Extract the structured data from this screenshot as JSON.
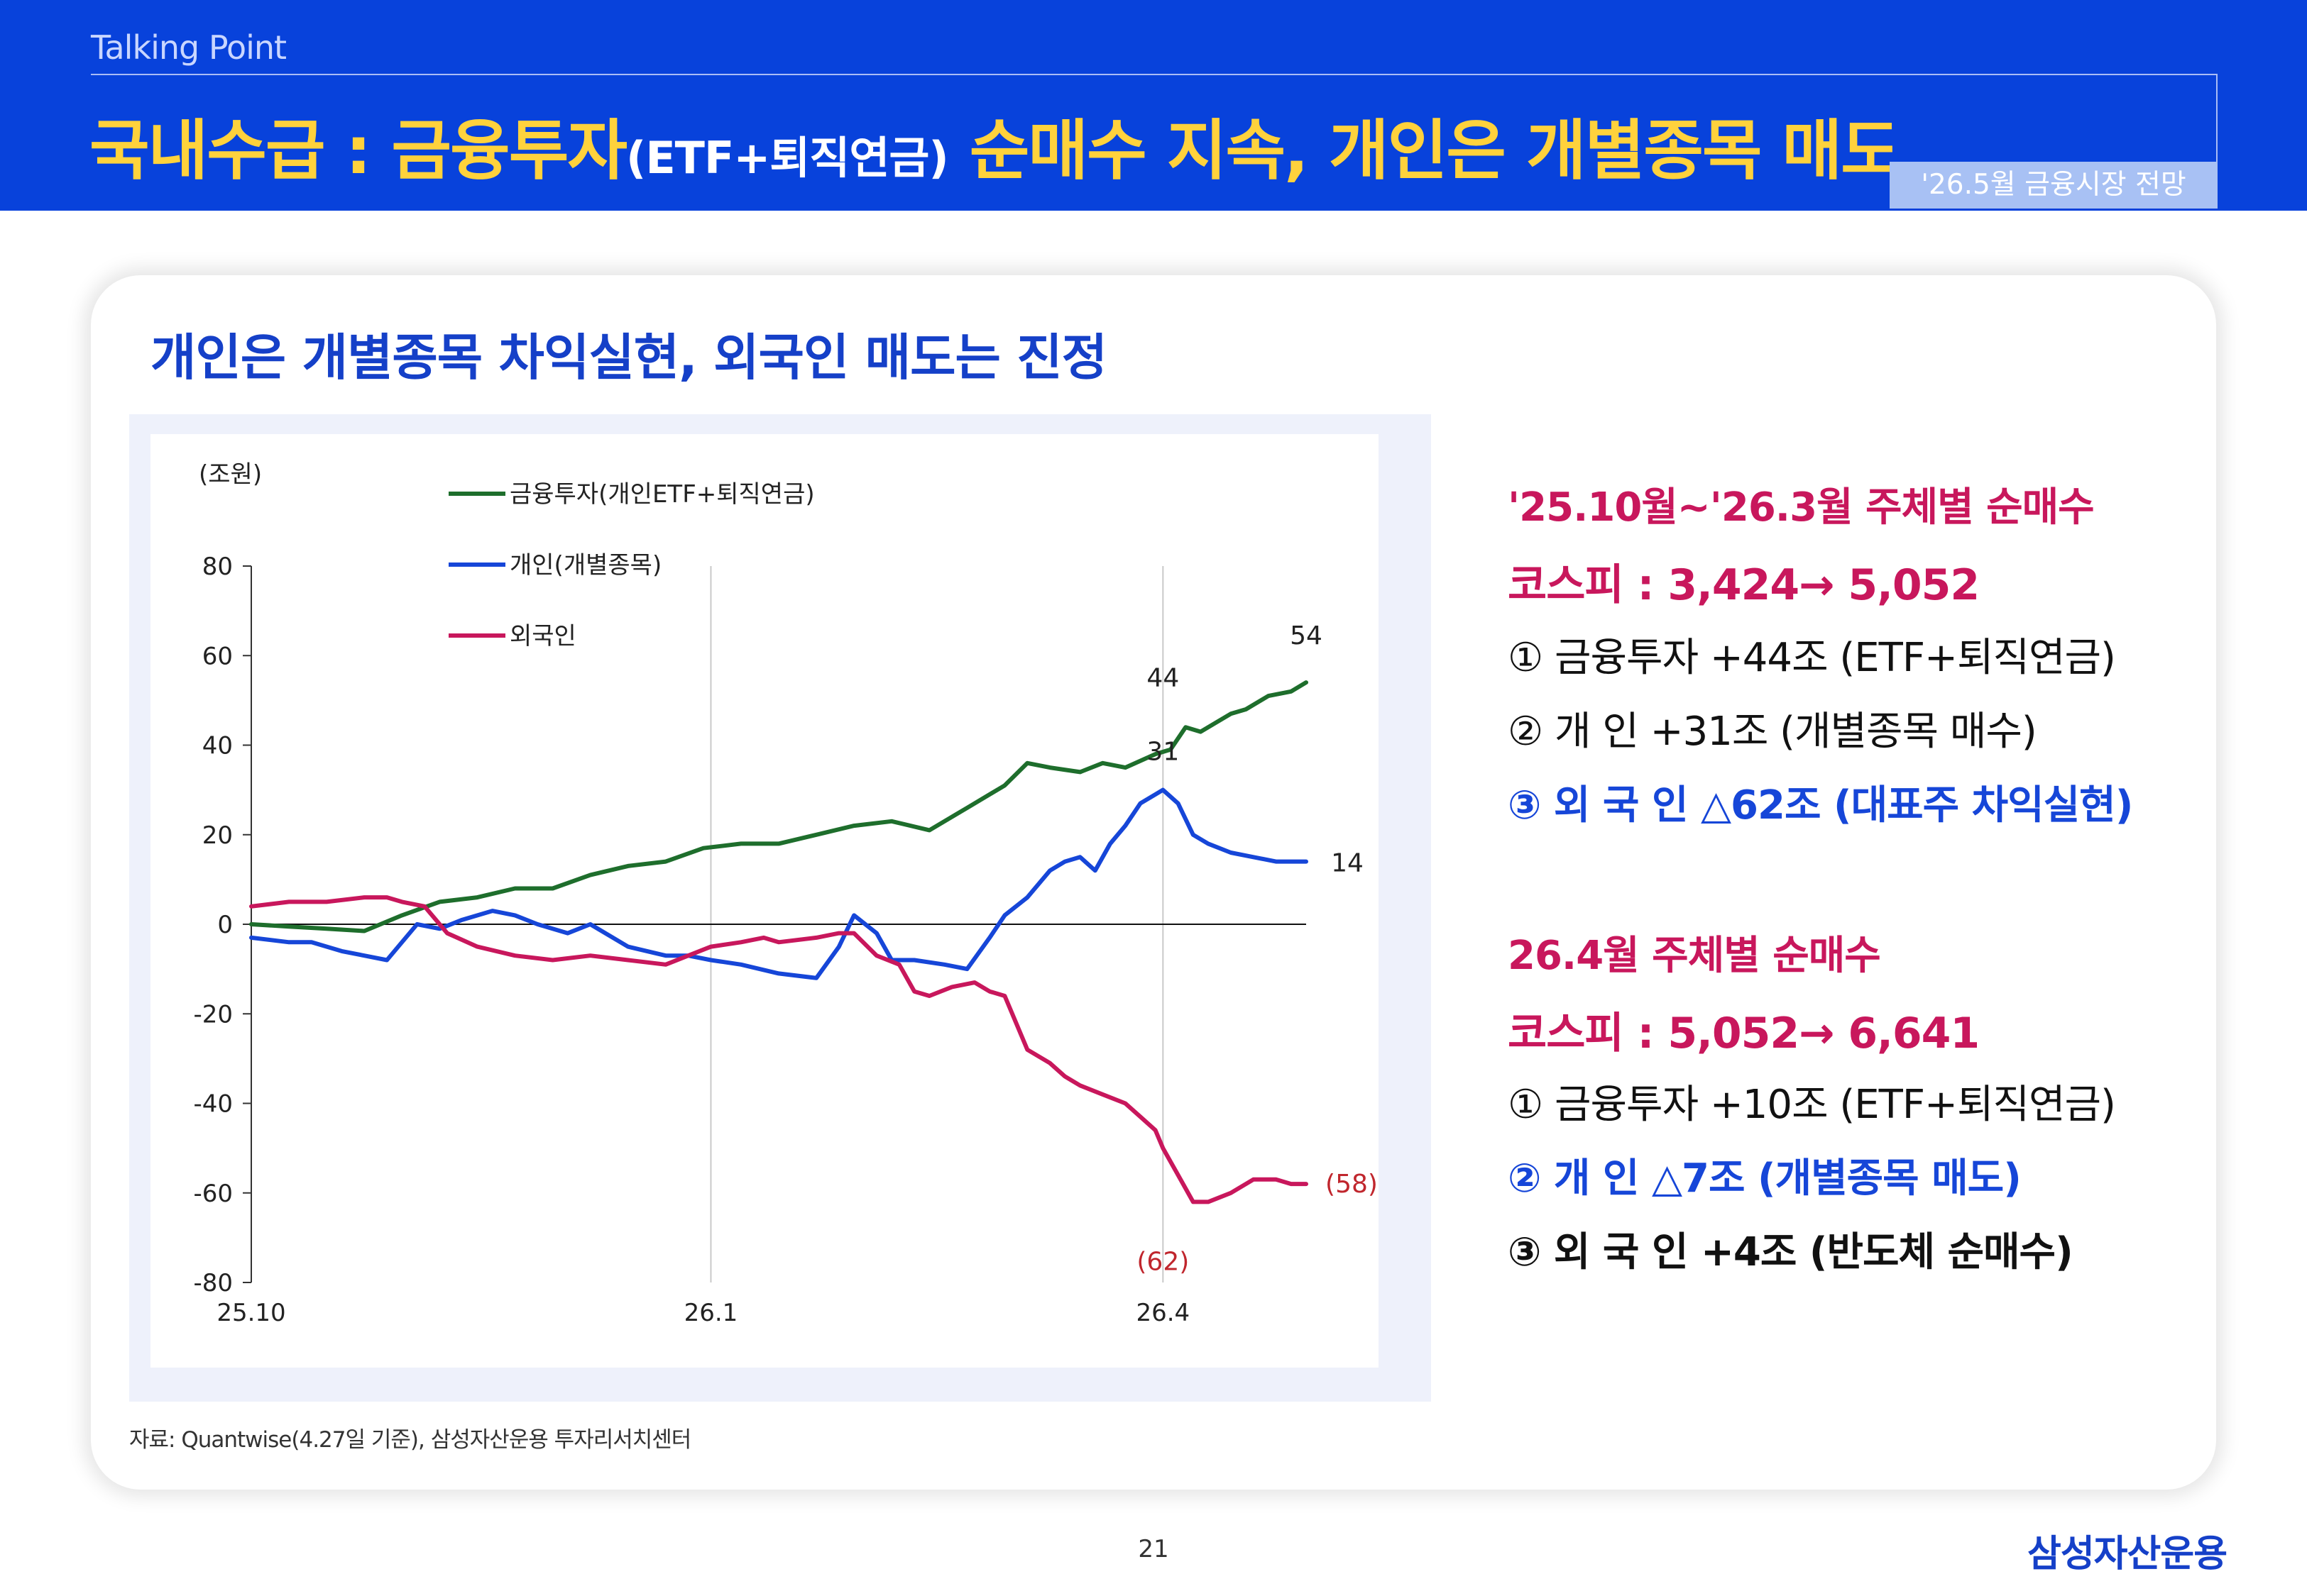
{
  "header": {
    "section_label": "Talking Point",
    "title_main": "국내수급 : 금융투자",
    "title_paren": "(ETF+퇴직연금)",
    "title_rest": " 순매수 지속, 개인은 개별종목 매도",
    "badge": "'26.5월 금융시장 전망",
    "colors": {
      "header_bg": "#0842db",
      "title": "#ffd23c"
    }
  },
  "card": {
    "title": "개인은 개별종목 차익실현, 외국인 매도는 진정"
  },
  "chart_data": {
    "type": "line",
    "unit_label": "(조원)",
    "xlabel": "",
    "ylabel": "",
    "ylim": [
      -80,
      80
    ],
    "yticks": [
      80,
      60,
      40,
      20,
      0,
      -20,
      -40,
      -60,
      -80
    ],
    "ytick_labels": [
      "80",
      "60",
      "40",
      "20",
      "0",
      "-20",
      "-40",
      "-60",
      "-80"
    ],
    "xtick_labels": [
      "25.10",
      "26.1",
      "26.4"
    ],
    "xticks": [
      0,
      61,
      121
    ],
    "xmax": 140,
    "vgrid_at": [
      61,
      121
    ],
    "legend_position": "top-left",
    "series": [
      {
        "name": "금융투자(개인ETF+퇴직연금)",
        "color": "#1e6e2c",
        "x": [
          0,
          5,
          10,
          15,
          20,
          25,
          30,
          35,
          40,
          45,
          50,
          55,
          60,
          65,
          70,
          75,
          80,
          85,
          90,
          95,
          100,
          103,
          106,
          110,
          113,
          116,
          120,
          122,
          124,
          126,
          128,
          130,
          132,
          135,
          138,
          140
        ],
        "values": [
          0,
          -0.5,
          -1,
          -1.5,
          2,
          5,
          6,
          8,
          8,
          11,
          13,
          14,
          17,
          18,
          18,
          20,
          22,
          23,
          21,
          26,
          31,
          36,
          35,
          34,
          36,
          35,
          38,
          39,
          44,
          43,
          45,
          47,
          48,
          51,
          52,
          54
        ]
      },
      {
        "name": "개인(개별종목)",
        "color": "#1646d8",
        "x": [
          0,
          5,
          8,
          12,
          15,
          18,
          22,
          25,
          28,
          32,
          35,
          38,
          42,
          45,
          50,
          55,
          58,
          61,
          65,
          70,
          75,
          78,
          80,
          83,
          85,
          88,
          92,
          95,
          98,
          100,
          103,
          106,
          108,
          110,
          112,
          114,
          116,
          118,
          120,
          121,
          123,
          125,
          127,
          130,
          133,
          136,
          138,
          140
        ],
        "values": [
          -3,
          -4,
          -4,
          -6,
          -7,
          -8,
          0,
          -1,
          1,
          3,
          2,
          0,
          -2,
          0,
          -5,
          -7,
          -7,
          -8,
          -9,
          -11,
          -12,
          -5,
          2,
          -2,
          -8,
          -8,
          -9,
          -10,
          -3,
          2,
          6,
          12,
          14,
          15,
          12,
          18,
          22,
          27,
          29,
          30,
          27,
          20,
          18,
          16,
          15,
          14,
          14,
          14
        ]
      },
      {
        "name": "외국인",
        "color": "#c8175c",
        "x": [
          0,
          5,
          10,
          15,
          18,
          20,
          23,
          26,
          30,
          35,
          40,
          45,
          50,
          55,
          58,
          61,
          65,
          68,
          70,
          75,
          78,
          80,
          83,
          86,
          88,
          90,
          93,
          96,
          98,
          100,
          103,
          106,
          108,
          110,
          113,
          116,
          118,
          120,
          121,
          123,
          125,
          127,
          130,
          133,
          136,
          138,
          140
        ],
        "values": [
          4,
          5,
          5,
          6,
          6,
          5,
          4,
          -2,
          -5,
          -7,
          -8,
          -7,
          -8,
          -9,
          -7,
          -5,
          -4,
          -3,
          -4,
          -3,
          -2,
          -2,
          -7,
          -9,
          -15,
          -16,
          -14,
          -13,
          -15,
          -16,
          -28,
          -31,
          -34,
          -36,
          -38,
          -40,
          -43,
          -46,
          -50,
          -56,
          -62,
          -62,
          -60,
          -57,
          -57,
          -58,
          -58
        ]
      }
    ],
    "annotations": [
      {
        "text": "54",
        "x": 140,
        "y": 54,
        "color": "#222222"
      },
      {
        "text": "44",
        "x": 121,
        "y": 44,
        "color": "#222222"
      },
      {
        "text": "31",
        "x": 121,
        "y": 31,
        "color": "#222222"
      },
      {
        "text": "14",
        "x": 140,
        "y": 14,
        "color": "#222222"
      },
      {
        "text": "(58)",
        "x": 140,
        "y": -58,
        "color": "#c0262d"
      },
      {
        "text": "(62)",
        "x": 121,
        "y": -62,
        "color": "#c0262d"
      }
    ]
  },
  "source_note": "자료: Quantwise(4.27일 기준), 삼성자산운용 투자리서치센터",
  "notes": {
    "block1": {
      "title": "'25.10월~'26.3월 주체별 순매수",
      "kospi": "코스피 : 3,424→ 5,052",
      "items": [
        "① 금융투자 +44조 (ETF+퇴직연금)",
        "② 개      인 +31조 (개별종목 매수)",
        "③ 외  국  인 △62조 (대표주 차익실현)"
      ]
    },
    "block2": {
      "title": "26.4월 주체별 순매수",
      "kospi": "코스피 : 5,052→ 6,641",
      "items": [
        "① 금융투자 +10조 (ETF+퇴직연금)",
        "② 개      인  △7조 (개별종목 매도)",
        "③ 외  국  인 +4조 (반도체 순매수)"
      ]
    },
    "colors": {
      "heading": "#c8175c",
      "blue": "#1646d8",
      "dark": "#111111"
    }
  },
  "footer": {
    "page_number": "21",
    "logo_text": "삼성자산운용"
  }
}
